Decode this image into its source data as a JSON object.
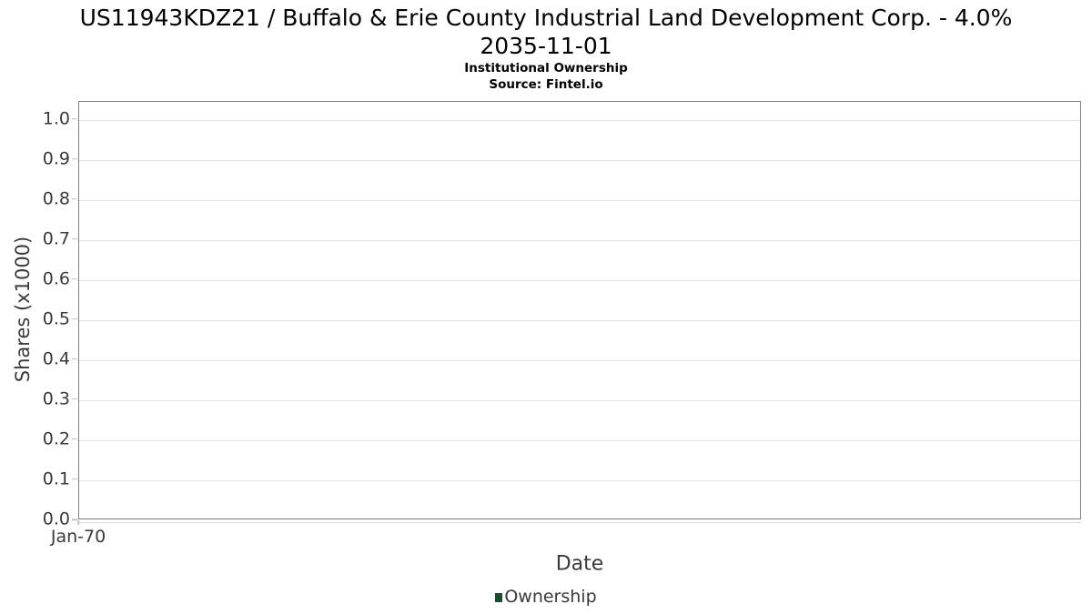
{
  "header": {
    "title_line1": "US11943KDZ21 / Buffalo & Erie County Industrial Land Development Corp. - 4.0%",
    "title_line2": "2035-11-01",
    "subtitle": "Institutional Ownership",
    "source": "Source: Fintel.io"
  },
  "chart_data": {
    "type": "line",
    "title": "US11943KDZ21 / Buffalo & Erie County Industrial Land Development Corp. - 4.0% 2035-11-01",
    "subtitle": "Institutional Ownership",
    "source": "Source: Fintel.io",
    "xlabel": "Date",
    "ylabel": "Shares (x1000)",
    "ylim": [
      0,
      1.045
    ],
    "yticks": [
      0,
      0.1,
      0.2,
      0.3,
      0.4,
      0.5,
      0.6,
      0.7,
      0.8,
      0.9,
      1.0
    ],
    "ytick_labels": [
      "0.0",
      "0.1",
      "0.2",
      "0.3",
      "0.4",
      "0.5",
      "0.6",
      "0.7",
      "0.8",
      "0.9",
      "1.0"
    ],
    "xticks": [
      {
        "label": "Jan-70",
        "position": 0
      }
    ],
    "grid": "horizontal",
    "legend_position": "bottom",
    "series": [
      {
        "name": "Ownership",
        "color": "#1d4b2c",
        "x": [],
        "y": []
      }
    ]
  },
  "colors": {
    "background": "#ffffff",
    "title_text": "#000000",
    "axis_text": "#3a3a3a",
    "axis_line": "#808080",
    "gridline": "#e4e4e4",
    "tick_mark": "#c4c4c4",
    "legend_green": "#1d4b2c"
  }
}
